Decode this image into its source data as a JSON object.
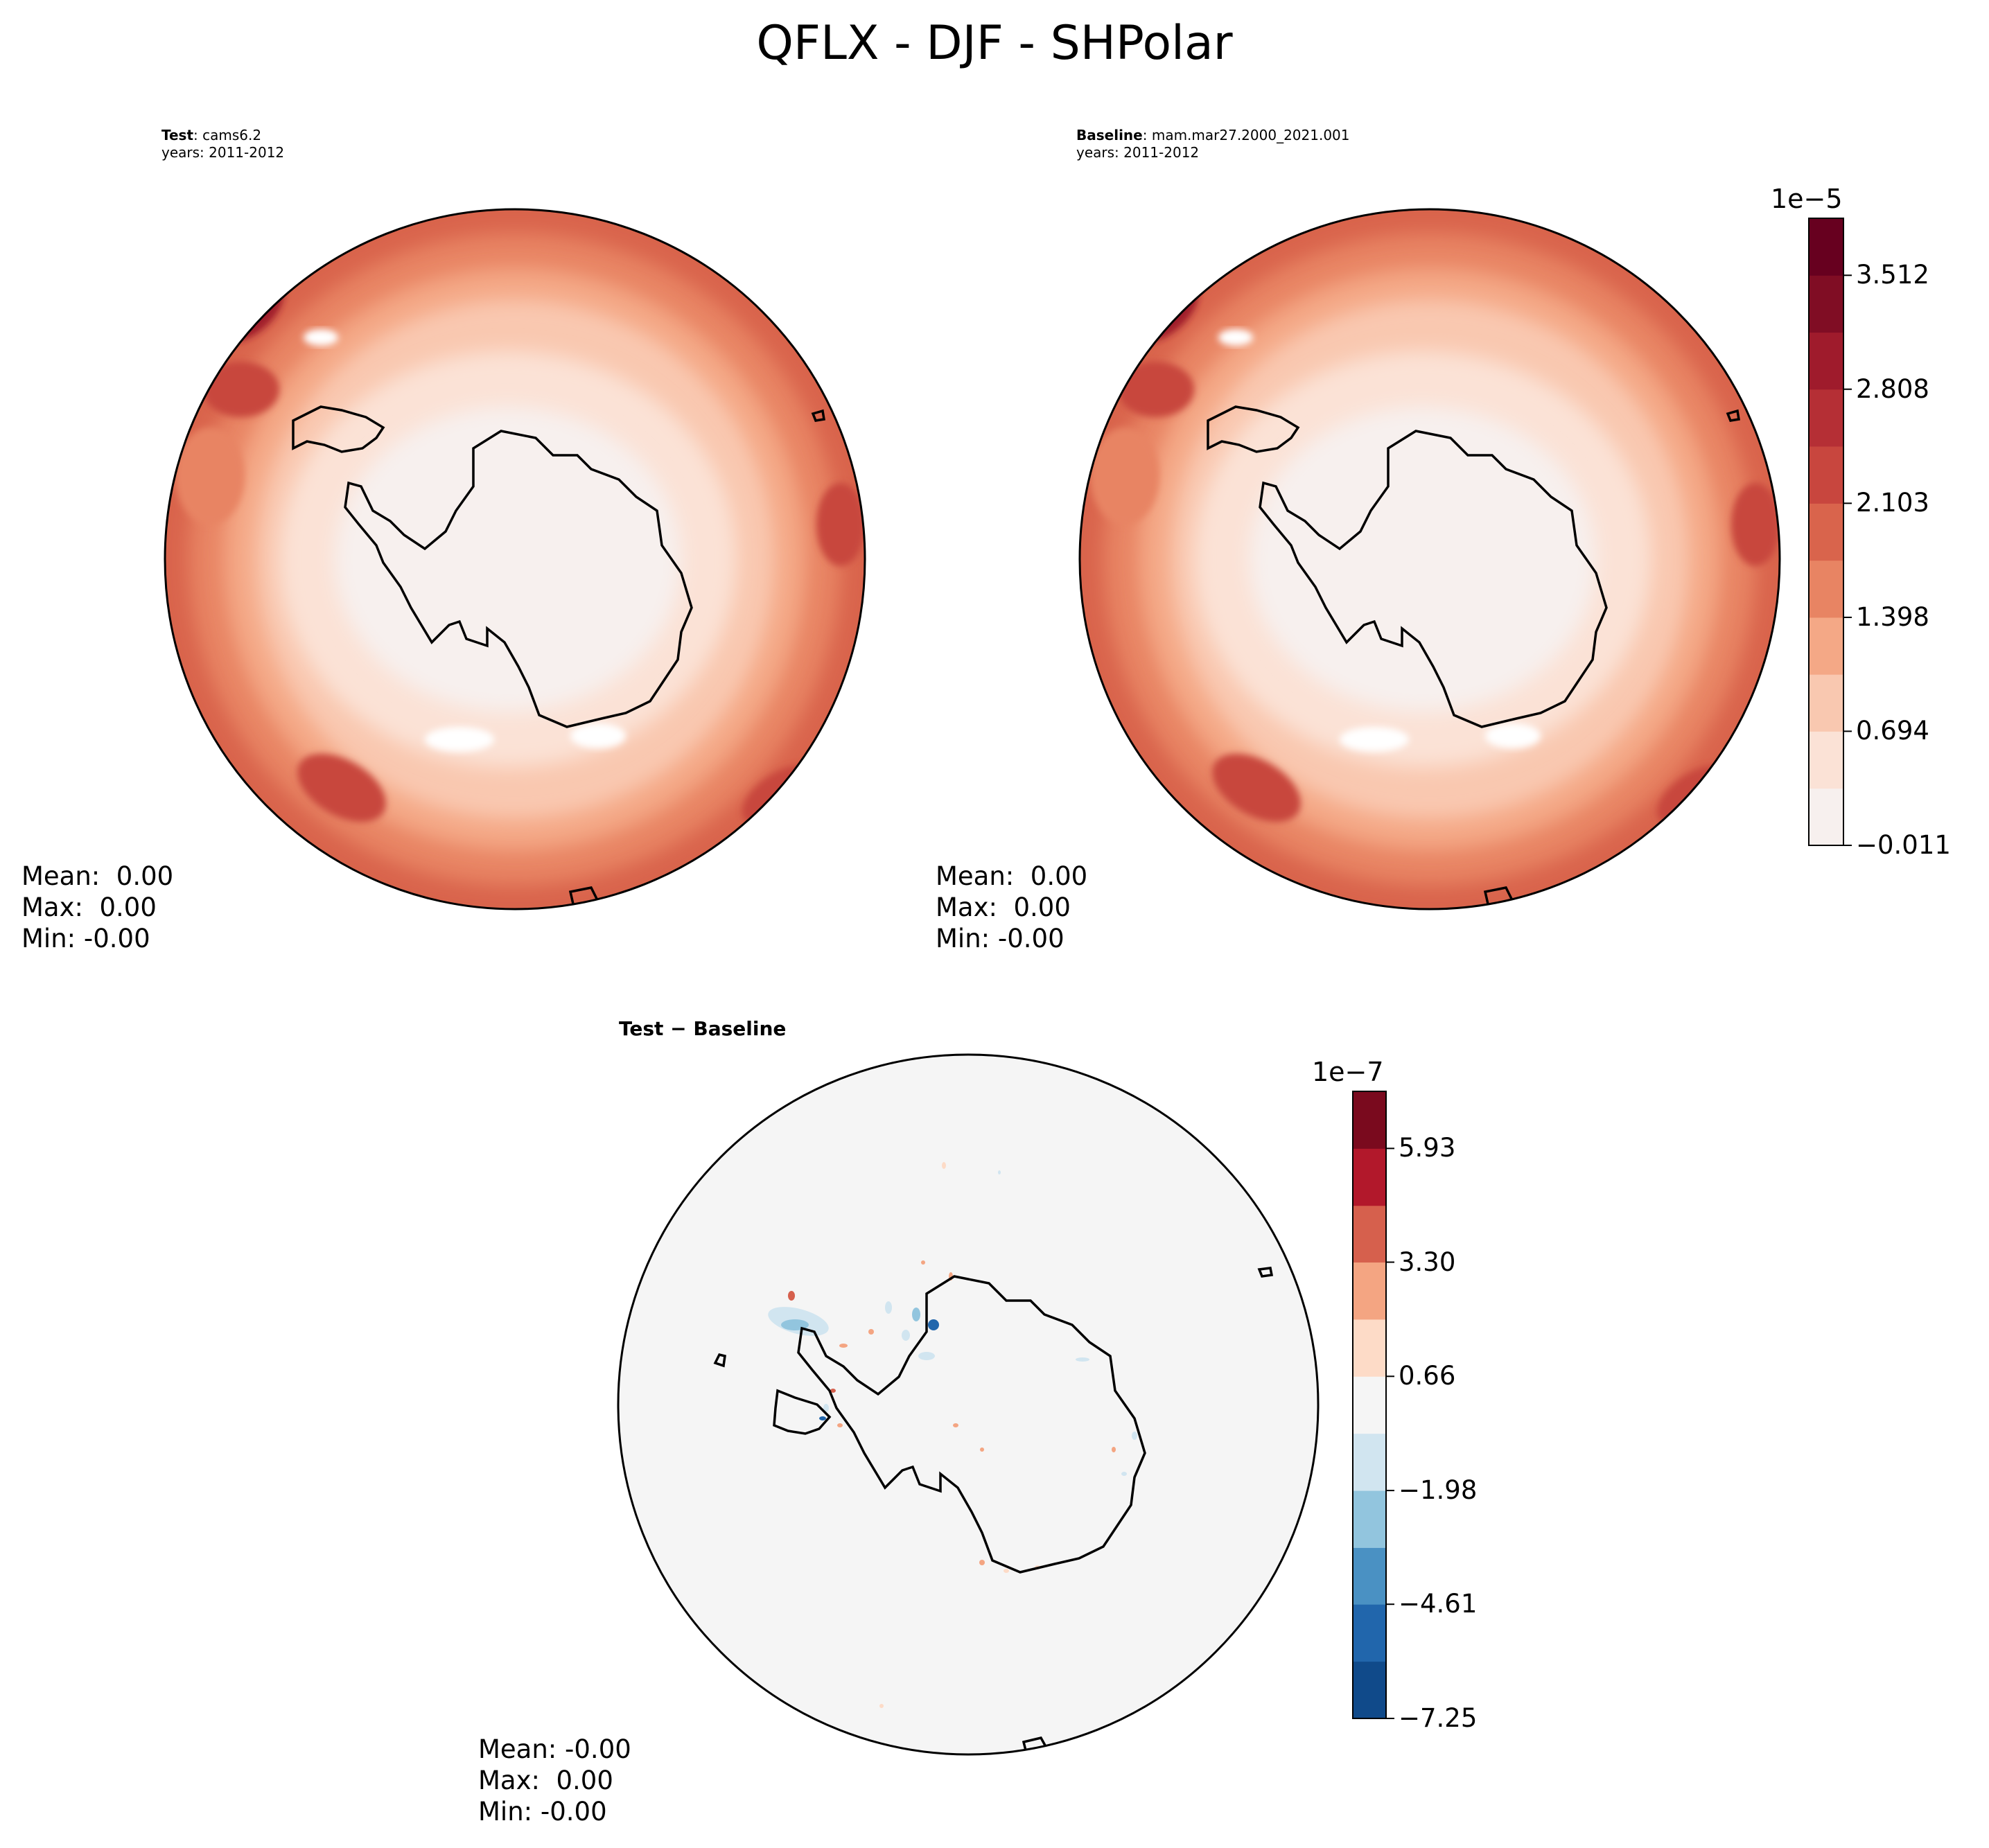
{
  "title": "QFLX - DJF - SHPolar",
  "chart_data": [
    {
      "type": "heatmap",
      "name": "Test",
      "title_bold": "Test",
      "title_rest": ": cams6.2",
      "subtitle": "years: 2011-2012",
      "stats": {
        "mean": "Mean:  0.00",
        "max": "Max:  0.00",
        "min": "Min: -0.00"
      },
      "colorbar": {
        "exponent": "1e−5",
        "tick_labels": [
          "−0.011",
          "0.694",
          "1.398",
          "2.103",
          "2.808",
          "3.512"
        ],
        "tick_values": [
          -0.011,
          0.694,
          1.398,
          2.103,
          2.808,
          3.512
        ],
        "levels": [
          -0.011,
          0.3415,
          0.694,
          1.046,
          1.398,
          1.7505,
          2.103,
          2.4555,
          2.808,
          3.16,
          3.512,
          3.8645
        ],
        "colors": [
          "#f7f0ee",
          "#fbe2d6",
          "#f9c8b0",
          "#f4a886",
          "#e88463",
          "#d9644c",
          "#c8463e",
          "#b52f35",
          "#9f1b2c",
          "#800d24",
          "#67001f"
        ]
      }
    },
    {
      "type": "heatmap",
      "name": "Baseline",
      "title_bold": "Baseline",
      "title_rest": ": mam.mar27.2000_2021.001",
      "subtitle": "years: 2011-2012",
      "stats": {
        "mean": "Mean:  0.00",
        "max": "Max:  0.00",
        "min": "Min: -0.00"
      }
    },
    {
      "type": "heatmap",
      "name": "Test - Baseline",
      "title": "Test − Baseline",
      "stats": {
        "mean": "Mean: -0.00",
        "max": "Max:  0.00",
        "min": "Min: -0.00"
      },
      "colorbar": {
        "exponent": "1e−7",
        "tick_labels": [
          "−7.25",
          "−4.61",
          "−1.98",
          "0.66",
          "3.30",
          "5.93"
        ],
        "tick_values": [
          -7.25,
          -4.61,
          -1.98,
          0.66,
          3.3,
          5.93
        ],
        "levels": [
          -7.25,
          -5.93,
          -4.61,
          -3.3,
          -1.98,
          -0.66,
          0.66,
          1.98,
          3.3,
          4.61,
          5.93,
          7.25
        ],
        "colors": [
          "#104a8a",
          "#2166ac",
          "#4a91c3",
          "#92c5de",
          "#d1e5f0",
          "#f5f5f5",
          "#fddbc7",
          "#f4a582",
          "#d6604d",
          "#b2182b",
          "#7a0a1e"
        ]
      }
    }
  ]
}
